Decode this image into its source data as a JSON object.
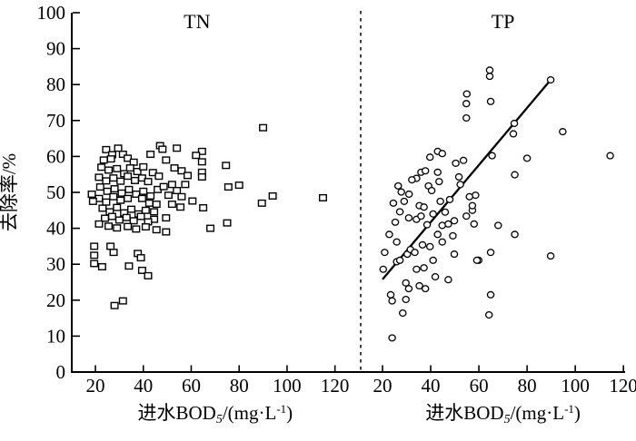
{
  "chart_data": {
    "type": "scatter",
    "title": "",
    "ylabel": "去除率/%",
    "ylim": [
      0,
      100
    ],
    "yticks": [
      0,
      10,
      20,
      30,
      40,
      50,
      60,
      70,
      80,
      90,
      100
    ],
    "grid": false,
    "legend": "none",
    "xlabel": "进水BOD5/(mg·L-1)",
    "xlabel_parts": {
      "pre": "进水BOD",
      "sub": "5",
      "mid": "/(mg·L",
      "sup": "-1",
      "post": ")"
    },
    "divider_style": "vertical dashed line between panels",
    "panels": [
      {
        "id": "TN",
        "label": "TN",
        "marker": "square",
        "xlim": [
          20,
          120
        ],
        "xticks": [
          20,
          40,
          60,
          80,
          100,
          120
        ],
        "points": [
          [
            90,
            68
          ],
          [
            115,
            48.5
          ],
          [
            94,
            49
          ],
          [
            89.5,
            47
          ],
          [
            80,
            52
          ],
          [
            75.5,
            51.5
          ],
          [
            74.5,
            57.5
          ],
          [
            75,
            41.5
          ],
          [
            68,
            40
          ],
          [
            19.5,
            35
          ],
          [
            19.5,
            32.5
          ],
          [
            26.3,
            35
          ],
          [
            27.6,
            33.3
          ],
          [
            19.5,
            30.2
          ],
          [
            22.8,
            29.3
          ],
          [
            34,
            29.5
          ],
          [
            39.5,
            28.3
          ],
          [
            42,
            26.8
          ],
          [
            31.5,
            19.8
          ],
          [
            28,
            18.5
          ],
          [
            37.7,
            33
          ],
          [
            39,
            31.8
          ],
          [
            24.5,
            61.9
          ],
          [
            29.5,
            62.3
          ],
          [
            27,
            60.5
          ],
          [
            31.5,
            60.6
          ],
          [
            47,
            63
          ],
          [
            48,
            62
          ],
          [
            54,
            62.3
          ],
          [
            43,
            60.6
          ],
          [
            23.5,
            59
          ],
          [
            26.5,
            59.3
          ],
          [
            33.5,
            59.5
          ],
          [
            36,
            58.4
          ],
          [
            49.5,
            59
          ],
          [
            64.5,
            61.4
          ],
          [
            62,
            60.3
          ],
          [
            64.5,
            58.5
          ],
          [
            22.5,
            57
          ],
          [
            25.5,
            56.2
          ],
          [
            29,
            56.6
          ],
          [
            32,
            55.2
          ],
          [
            34.5,
            56.8
          ],
          [
            37.5,
            55.8
          ],
          [
            40,
            57.1
          ],
          [
            44,
            55.5
          ],
          [
            46.5,
            54.5
          ],
          [
            53,
            56.8
          ],
          [
            56,
            56
          ],
          [
            58.5,
            54.7
          ],
          [
            64.5,
            55.6
          ],
          [
            64.5,
            54.3
          ],
          [
            21.5,
            54.2
          ],
          [
            24.5,
            53.2
          ],
          [
            27.5,
            54
          ],
          [
            30.5,
            53.1
          ],
          [
            33.5,
            54.5
          ],
          [
            36.5,
            53.3
          ],
          [
            39.5,
            54
          ],
          [
            42,
            53
          ],
          [
            52,
            52.2
          ],
          [
            57.5,
            52.2
          ],
          [
            54,
            50.5
          ],
          [
            50.5,
            49.2
          ],
          [
            56,
            48.8
          ],
          [
            60.5,
            47.6
          ],
          [
            22,
            51.5
          ],
          [
            25,
            50.3
          ],
          [
            28,
            51
          ],
          [
            31,
            49.8
          ],
          [
            34,
            50.8
          ],
          [
            37,
            49.5
          ],
          [
            40,
            50.3
          ],
          [
            43,
            49
          ],
          [
            46,
            50.8
          ],
          [
            48.5,
            51.6
          ],
          [
            18.5,
            49.5
          ],
          [
            21.5,
            48.3
          ],
          [
            24.5,
            47.3
          ],
          [
            27.5,
            48.8
          ],
          [
            30.5,
            47.8
          ],
          [
            33.5,
            48.3
          ],
          [
            39.5,
            48.3
          ],
          [
            19,
            47.5
          ],
          [
            42.5,
            47
          ],
          [
            45.5,
            46.7
          ],
          [
            52,
            46.7
          ],
          [
            55.5,
            45.9
          ],
          [
            65,
            45.7
          ],
          [
            23,
            45.6
          ],
          [
            26,
            44.6
          ],
          [
            29,
            45.8
          ],
          [
            32,
            44.3
          ],
          [
            35,
            45.3
          ],
          [
            38,
            44
          ],
          [
            41,
            45
          ],
          [
            44.5,
            44.6
          ],
          [
            49.5,
            42.9
          ],
          [
            44.5,
            42.5
          ],
          [
            24,
            42.8
          ],
          [
            27,
            43.3
          ],
          [
            30,
            42.3
          ],
          [
            33,
            43
          ],
          [
            36,
            42.1
          ],
          [
            39,
            43.3
          ],
          [
            42,
            41.8
          ],
          [
            45.5,
            39.6
          ],
          [
            49.5,
            39
          ],
          [
            41,
            40.4
          ],
          [
            37,
            39.8
          ],
          [
            33.5,
            40.5
          ],
          [
            29,
            40.1
          ],
          [
            25.5,
            40.6
          ],
          [
            21.5,
            41.2
          ]
        ]
      },
      {
        "id": "TP",
        "label": "TP",
        "marker": "circle",
        "xlim": [
          20,
          120
        ],
        "xticks": [
          20,
          40,
          60,
          80,
          100,
          120
        ],
        "trendline": {
          "x1": 20,
          "y1": 25.8,
          "x2": 89.8,
          "y2": 81.3
        },
        "points": [
          [
            64.5,
            84
          ],
          [
            64.5,
            82.3
          ],
          [
            89.8,
            81.3
          ],
          [
            55,
            77.4
          ],
          [
            64.9,
            75.3
          ],
          [
            54.8,
            74.7
          ],
          [
            54.8,
            70.7
          ],
          [
            74.7,
            69.2
          ],
          [
            74.3,
            66.3
          ],
          [
            94.8,
            66.9
          ],
          [
            65.5,
            60.2
          ],
          [
            114.5,
            60.2
          ],
          [
            80,
            59.5
          ],
          [
            74.9,
            54.9
          ],
          [
            58.6,
            49.2
          ],
          [
            57.3,
            45
          ],
          [
            58,
            41.2
          ],
          [
            68,
            40.8
          ],
          [
            74.9,
            38.3
          ],
          [
            89.8,
            32.3
          ],
          [
            64.9,
            33.3
          ],
          [
            59.9,
            31.1
          ],
          [
            64.9,
            21.5
          ],
          [
            64.2,
            15.9
          ],
          [
            24,
            9.5
          ],
          [
            39.7,
            59.8
          ],
          [
            42.9,
            61.4
          ],
          [
            44.8,
            60.8
          ],
          [
            50.4,
            58.1
          ],
          [
            53.6,
            58.9
          ],
          [
            36,
            55.6
          ],
          [
            37.8,
            56
          ],
          [
            34.1,
            53.9
          ],
          [
            32.2,
            53.5
          ],
          [
            42.9,
            55.6
          ],
          [
            43.5,
            53
          ],
          [
            39.1,
            51.8
          ],
          [
            40.4,
            50.5
          ],
          [
            51.7,
            54.3
          ],
          [
            52.3,
            52.2
          ],
          [
            26.5,
            51.8
          ],
          [
            27.8,
            50.1
          ],
          [
            56.1,
            48.8
          ],
          [
            57.3,
            46.3
          ],
          [
            35.3,
            46.3
          ],
          [
            37.2,
            45.9
          ],
          [
            27.2,
            44.6
          ],
          [
            30.9,
            42.9
          ],
          [
            34.1,
            42.5
          ],
          [
            36,
            43.4
          ],
          [
            47.9,
            48
          ],
          [
            44.8,
            40.8
          ],
          [
            47.3,
            41.2
          ],
          [
            49.8,
            42.1
          ],
          [
            25.3,
            41.7
          ],
          [
            54.8,
            43.4
          ],
          [
            22.8,
            38.3
          ],
          [
            25.9,
            36.2
          ],
          [
            20.9,
            33.3
          ],
          [
            20.3,
            28.6
          ],
          [
            25.9,
            30.7
          ],
          [
            27.2,
            31.1
          ],
          [
            30.3,
            32.8
          ],
          [
            31.6,
            34.1
          ],
          [
            33.4,
            33.3
          ],
          [
            36.6,
            35.4
          ],
          [
            39.7,
            34.9
          ],
          [
            41,
            31.1
          ],
          [
            34.1,
            28.6
          ],
          [
            37.2,
            29
          ],
          [
            42.9,
            38.3
          ],
          [
            44.8,
            36.2
          ],
          [
            49.2,
            37.9
          ],
          [
            49.8,
            32.8
          ],
          [
            59.2,
            31.1
          ],
          [
            47.3,
            25.7
          ],
          [
            29.7,
            24.8
          ],
          [
            30.9,
            23.2
          ],
          [
            35.3,
            24
          ],
          [
            37.8,
            23.2
          ],
          [
            23.4,
            21.5
          ],
          [
            24,
            19.8
          ],
          [
            29.7,
            20.2
          ],
          [
            28.4,
            16.4
          ],
          [
            41.9,
            26.5
          ],
          [
            31,
            49.5
          ],
          [
            29,
            47.5
          ],
          [
            24.5,
            47
          ],
          [
            46,
            44.5
          ],
          [
            41,
            44
          ],
          [
            38.5,
            41
          ],
          [
            44,
            47.5
          ]
        ]
      }
    ]
  }
}
